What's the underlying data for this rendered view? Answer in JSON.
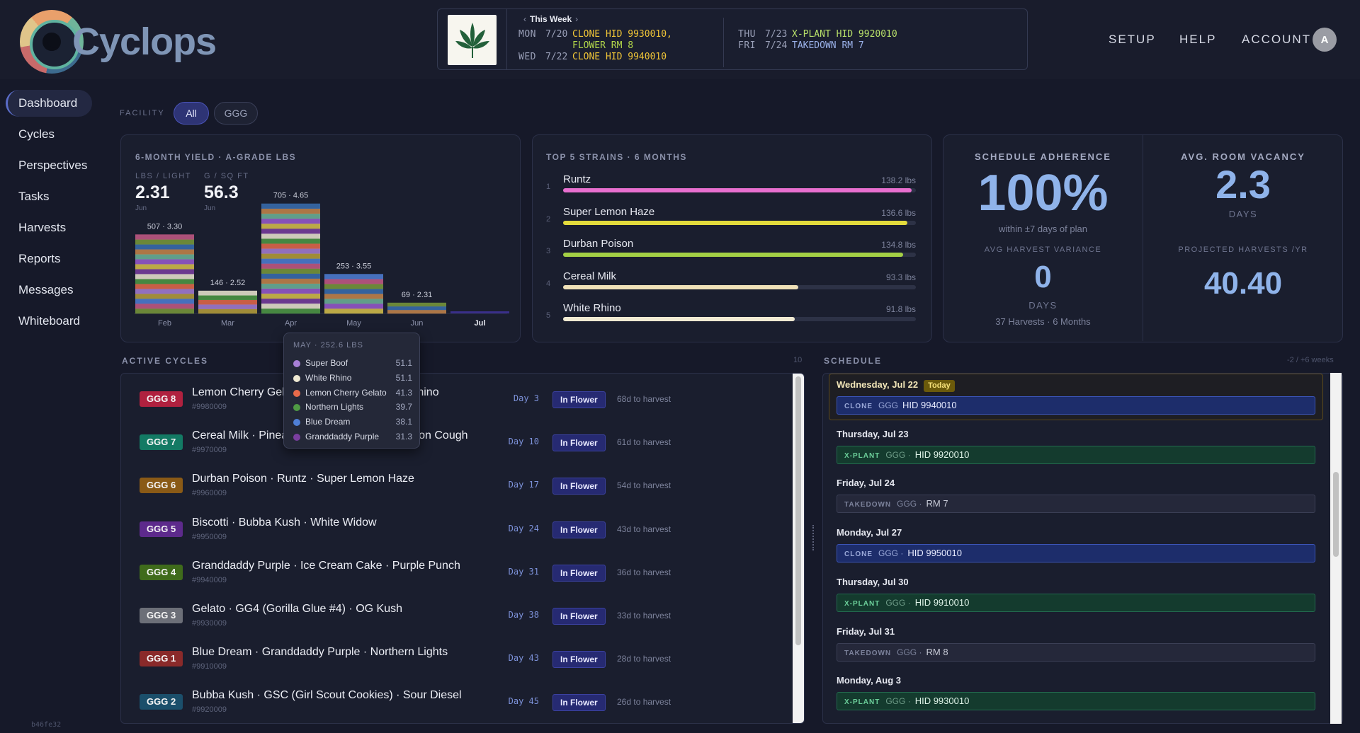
{
  "app": {
    "name": "Cyclops",
    "build": "b46fe32"
  },
  "week_strip": {
    "title": "This Week",
    "left": [
      {
        "day": "MON",
        "date": "7/20",
        "events": [
          {
            "type": "clone",
            "text": "CLONE HID 9930010,"
          },
          {
            "type": "flower",
            "text": "FLOWER RM 8"
          }
        ]
      },
      {
        "day": "WED",
        "date": "7/22",
        "events": [
          {
            "type": "clone",
            "text": "CLONE HID 9940010"
          }
        ]
      }
    ],
    "right": [
      {
        "day": "THU",
        "date": "7/23",
        "events": [
          {
            "type": "xplant",
            "text": "X-PLANT HID 9920010"
          }
        ]
      },
      {
        "day": "FRI",
        "date": "7/24",
        "events": [
          {
            "type": "take",
            "text": "TAKEDOWN RM 7"
          }
        ]
      }
    ]
  },
  "top_nav": {
    "setup": "SETUP",
    "help": "HELP",
    "account": "ACCOUNT",
    "avatar": "A"
  },
  "sidebar": {
    "items": [
      {
        "label": "Dashboard",
        "active": true
      },
      {
        "label": "Cycles"
      },
      {
        "label": "Perspectives"
      },
      {
        "label": "Tasks"
      },
      {
        "label": "Harvests"
      },
      {
        "label": "Reports"
      },
      {
        "label": "Messages"
      },
      {
        "label": "Whiteboard"
      }
    ]
  },
  "facility": {
    "label": "FACILITY",
    "options": [
      "All",
      "GGG"
    ],
    "selected": "All"
  },
  "yield_card": {
    "title": "6-MONTH YIELD · A-GRADE LBS",
    "metrics": [
      {
        "label": "LBS / LIGHT",
        "value": "2.31",
        "sub": "Jun"
      },
      {
        "label": "G / SQ FT",
        "value": "56.3",
        "sub": "Jun"
      }
    ]
  },
  "chart_data": {
    "type": "bar",
    "stacked": true,
    "categories": [
      "Feb",
      "Mar",
      "Apr",
      "May",
      "Jun",
      "Jul"
    ],
    "values": [
      507,
      146,
      705,
      253,
      69,
      0
    ],
    "per_light": [
      3.3,
      2.52,
      4.65,
      3.55,
      2.31,
      null
    ],
    "data_labels": [
      "507 · 3.30",
      "146 · 2.52",
      "705 · 4.65",
      "253 · 3.55",
      "69 · 2.31",
      ""
    ],
    "ylim": [
      0,
      740
    ],
    "highlight_category": "Jul"
  },
  "tooltip": {
    "title": "MAY · 252.6 LBS",
    "rows": [
      {
        "name": "Super Boof",
        "value": "51.1",
        "color": "#a77fd6"
      },
      {
        "name": "White Rhino",
        "value": "51.1",
        "color": "#efe9d2"
      },
      {
        "name": "Lemon Cherry Gelato",
        "value": "41.3",
        "color": "#e86a4a"
      },
      {
        "name": "Northern Lights",
        "value": "39.7",
        "color": "#4f9a44"
      },
      {
        "name": "Blue Dream",
        "value": "38.1",
        "color": "#4f7fd6"
      },
      {
        "name": "Granddaddy Purple",
        "value": "31.3",
        "color": "#7a3ea0"
      }
    ]
  },
  "strains_card": {
    "title": "TOP 5 STRAINS · 6 MONTHS",
    "items": [
      {
        "rank": "1",
        "name": "Runtz",
        "value": "138.2 lbs",
        "amount": 138.2,
        "color": "#e86fcf"
      },
      {
        "rank": "2",
        "name": "Super Lemon Haze",
        "value": "136.6 lbs",
        "amount": 136.6,
        "color": "#e3db3c"
      },
      {
        "rank": "3",
        "name": "Durban Poison",
        "value": "134.8 lbs",
        "amount": 134.8,
        "color": "#a4d045"
      },
      {
        "rank": "4",
        "name": "Cereal Milk",
        "value": "93.3 lbs",
        "amount": 93.3,
        "color": "#efe0b8"
      },
      {
        "rank": "5",
        "name": "White Rhino",
        "value": "91.8 lbs",
        "amount": 91.8,
        "color": "#f0ead2"
      }
    ]
  },
  "kpi": {
    "adherence_title": "SCHEDULE ADHERENCE",
    "adherence_value": "100%",
    "adherence_sub": "within ±7 days of plan",
    "variance_title": "AVG HARVEST VARIANCE",
    "variance_value": "0",
    "variance_unit": "DAYS",
    "variance_sub": "37 Harvests · 6 Months",
    "vacancy_title": "AVG. ROOM VACANCY",
    "vacancy_value": "2.3",
    "vacancy_unit": "DAYS",
    "projected_title": "PROJECTED HARVESTS /YR",
    "projected_value": "40.40"
  },
  "active_cycles": {
    "title": "ACTIVE CYCLES",
    "count": "10",
    "rows": [
      {
        "tag": "GGG 8",
        "color": "#b0213f",
        "name": "Lemon Cherry Gelato · Super Boof · White Rhino",
        "id": "#9980009",
        "day": "Day 3",
        "status": "In Flower",
        "harvest": "68d to harvest"
      },
      {
        "tag": "GGG 7",
        "color": "#137a64",
        "name": "Cereal Milk · Pineapple Express · Super Lemon Cough",
        "id": "#9970009",
        "day": "Day 10",
        "status": "In Flower",
        "harvest": "61d to harvest"
      },
      {
        "tag": "GGG 6",
        "color": "#8a5a16",
        "name": "Durban Poison · Runtz · Super Lemon Haze",
        "id": "#9960009",
        "day": "Day 17",
        "status": "In Flower",
        "harvest": "54d to harvest"
      },
      {
        "tag": "GGG 5",
        "color": "#5d2a8c",
        "name": "Biscotti · Bubba Kush · White Widow",
        "id": "#9950009",
        "day": "Day 24",
        "status": "In Flower",
        "harvest": "43d to harvest"
      },
      {
        "tag": "GGG 4",
        "color": "#3f6b1b",
        "name": "Granddaddy Purple · Ice Cream Cake · Purple Punch",
        "id": "#9940009",
        "day": "Day 31",
        "status": "In Flower",
        "harvest": "36d to harvest"
      },
      {
        "tag": "GGG 3",
        "color": "#6c6f78",
        "name": "Gelato · GG4 (Gorilla Glue #4) · OG Kush",
        "id": "#9930009",
        "day": "Day 38",
        "status": "In Flower",
        "harvest": "33d to harvest"
      },
      {
        "tag": "GGG 1",
        "color": "#8a2a2a",
        "name": "Blue Dream · Granddaddy Purple · Northern Lights",
        "id": "#9910009",
        "day": "Day 43",
        "status": "In Flower",
        "harvest": "28d to harvest"
      },
      {
        "tag": "GGG 2",
        "color": "#1b4f6b",
        "name": "Bubba Kush · GSC (Girl Scout Cookies) · Sour Diesel",
        "id": "#9920009",
        "day": "Day 45",
        "status": "In Flower",
        "harvest": "26d to harvest"
      }
    ]
  },
  "schedule": {
    "title": "SCHEDULE",
    "range": "-2 / +6 weeks",
    "today_label": "Today",
    "days": [
      {
        "day": "Wednesday, Jul 22",
        "today": true,
        "kind": "clone",
        "k": "CLONE",
        "g": "GGG",
        "text": "HID 9940010"
      },
      {
        "day": "Thursday, Jul 23",
        "kind": "xplant",
        "k": "X-PLANT",
        "g": "GGG ·",
        "text": "HID 9920010"
      },
      {
        "day": "Friday, Jul 24",
        "kind": "take",
        "k": "TAKEDOWN",
        "g": "GGG ·",
        "text": "RM 7"
      },
      {
        "day": "Monday, Jul 27",
        "kind": "clone",
        "k": "CLONE",
        "g": "GGG ·",
        "text": "HID 9950010"
      },
      {
        "day": "Thursday, Jul 30",
        "kind": "xplant",
        "k": "X-PLANT",
        "g": "GGG ·",
        "text": "HID 9910010"
      },
      {
        "day": "Friday, Jul 31",
        "kind": "take",
        "k": "TAKEDOWN",
        "g": "GGG ·",
        "text": "RM 8"
      },
      {
        "day": "Monday, Aug 3",
        "kind": "xplant",
        "k": "X-PLANT",
        "g": "GGG ·",
        "text": "HID 9930010"
      }
    ]
  }
}
